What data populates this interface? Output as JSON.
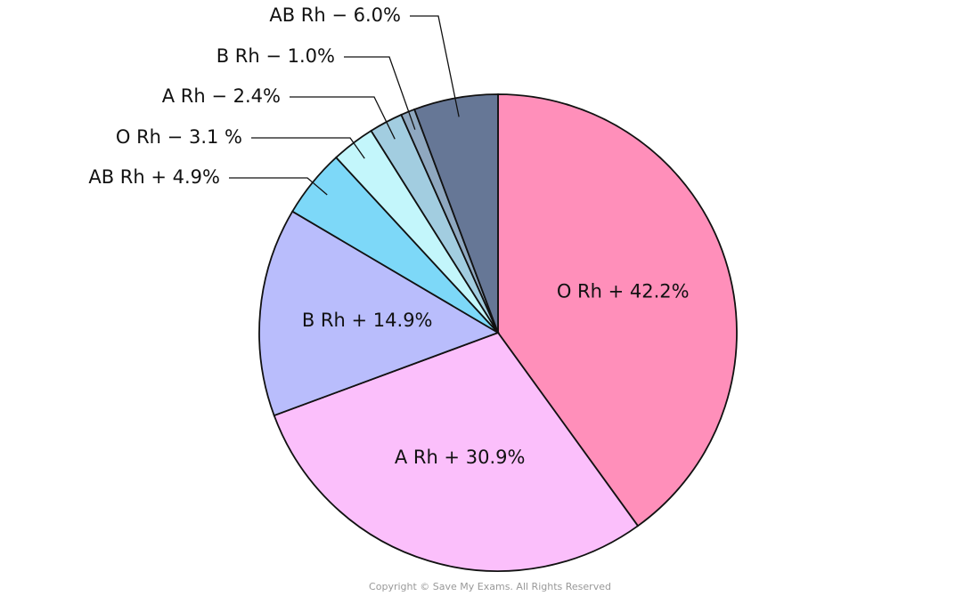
{
  "chart_data": {
    "type": "pie",
    "categories": [
      "O Rh +",
      "A Rh +",
      "B Rh +",
      "AB Rh +",
      "O Rh −",
      "A Rh −",
      "B Rh −",
      "AB Rh −"
    ],
    "values": [
      42.2,
      30.9,
      14.9,
      4.9,
      3.1,
      2.4,
      1.0,
      6.0
    ],
    "value_labels": [
      "42.2%",
      "30.9%",
      "14.9%",
      "4.9%",
      "3.1 %",
      "2.4%",
      "1.0%",
      "6.0%"
    ],
    "colors": [
      "#ff8fba",
      "#fbbffb",
      "#b9bdfc",
      "#7dd8f8",
      "#c3f6fb",
      "#a2cde0",
      "#8fa8c0",
      "#667796"
    ],
    "footer": "Copyright © Save My Exams. All Rights Reserved"
  }
}
